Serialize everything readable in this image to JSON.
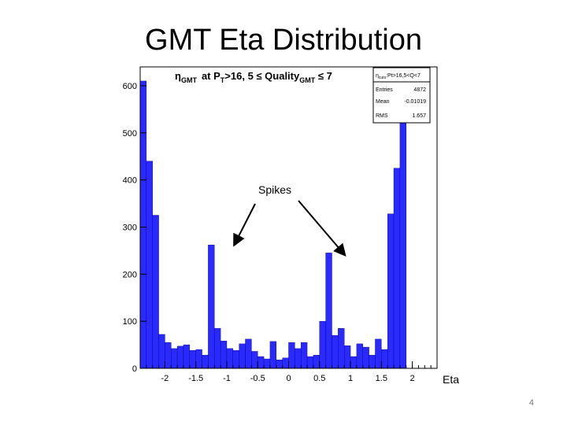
{
  "slide": {
    "title": "GMT Eta Distribution",
    "page_number": "4",
    "eta_label": "Eta",
    "spikes_label": "Spikes"
  },
  "colors": {
    "bar": "#2a2aff",
    "bar_edge": "#000080",
    "frame": "#000000"
  },
  "chart_data": {
    "type": "bar",
    "title": "η_GMT at P_T>16, 5 ≤ Quality_GMT ≤ 7",
    "title_parts": {
      "eta": "η",
      "gmt": "GMT",
      "at_pt": "at P",
      "t": "T",
      "cut": ">16, 5 ≤ Quality",
      "gmt2": "GMT",
      "le7": " ≤ 7"
    },
    "xlabel": "",
    "ylabel": "",
    "xlim": [
      -2.4,
      2.4
    ],
    "ylim": [
      0,
      640
    ],
    "x_ticks": [
      -2,
      -1.5,
      -1,
      -0.5,
      0,
      0.5,
      1,
      1.5,
      2
    ],
    "x_tick_labels": [
      "-2",
      "-1.5",
      "-1",
      "-0.5",
      "0",
      "0.5",
      "1",
      "1.5",
      "2"
    ],
    "y_ticks": [
      0,
      100,
      200,
      300,
      400,
      500,
      600
    ],
    "y_tick_labels": [
      "0",
      "100",
      "200",
      "300",
      "400",
      "500",
      "600"
    ],
    "bin_width": 0.1,
    "bin_start": -2.4,
    "values": [
      610,
      440,
      325,
      72,
      55,
      42,
      47,
      50,
      38,
      40,
      28,
      262,
      85,
      58,
      42,
      38,
      52,
      62,
      36,
      25,
      20,
      57,
      18,
      22,
      55,
      42,
      55,
      25,
      28,
      100,
      245,
      70,
      85,
      48,
      25,
      52,
      45,
      28,
      62,
      40,
      328,
      425,
      620
    ],
    "stats": {
      "name": "η_cuts:Pt>16,5<Q<7",
      "name_parts": {
        "eta": "η",
        "sub": "cuts",
        "rest": ":Pt>16,5<Q<7"
      },
      "rows": [
        {
          "label": "Entries",
          "value": "4872"
        },
        {
          "label": "Mean",
          "value": "-0.01019"
        },
        {
          "label": "RMS",
          "value": "1.657"
        }
      ]
    }
  }
}
